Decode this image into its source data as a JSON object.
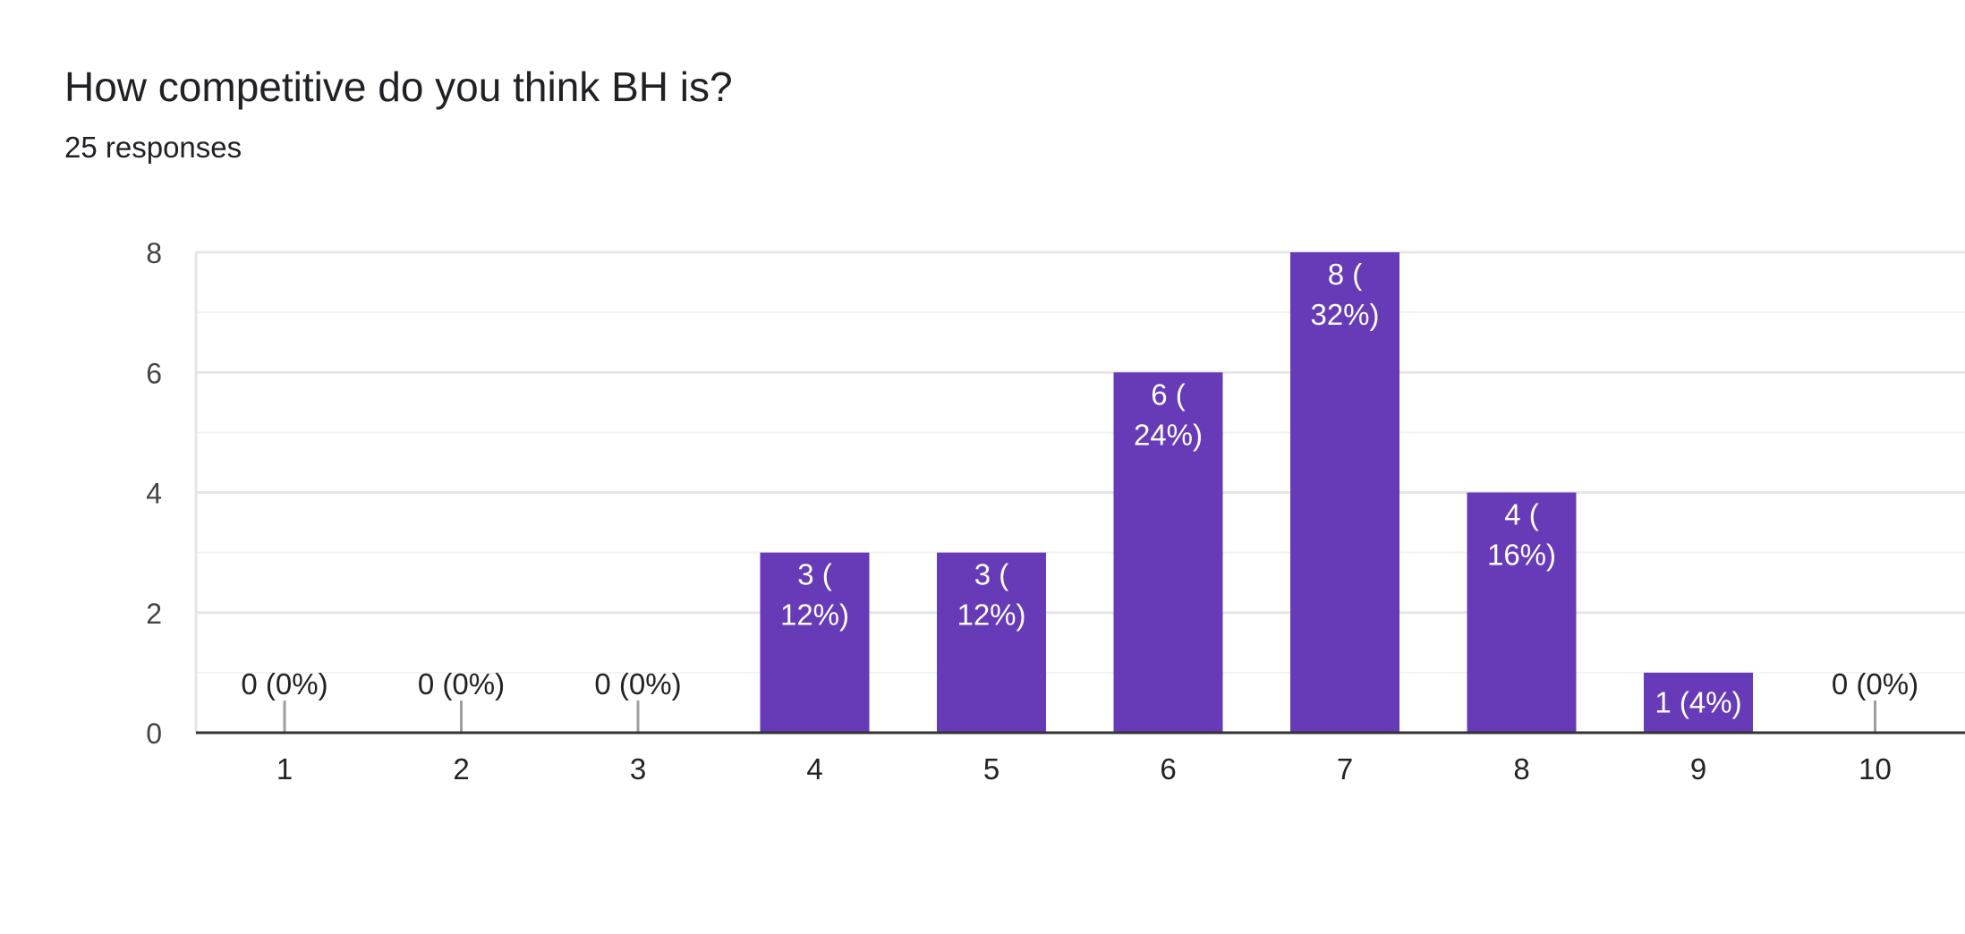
{
  "question": {
    "title": "How competitive do you think BH is?",
    "responses": "25 responses"
  },
  "colors": {
    "bar": "#673ab7",
    "grid_major": "#e6e6e6",
    "grid_minor": "#f3f3f3",
    "axis": "#333333",
    "zero_stub": "#9e9e9e",
    "tick_text": "#444444",
    "label_inside": "#ffffff",
    "label_outside": "#222222"
  },
  "chart_data": {
    "type": "bar",
    "title": "How competitive do you think BH is?",
    "subtitle": "25 responses",
    "categories": [
      "1",
      "2",
      "3",
      "4",
      "5",
      "6",
      "7",
      "8",
      "9",
      "10"
    ],
    "values": [
      0,
      0,
      0,
      3,
      3,
      6,
      8,
      4,
      1,
      0
    ],
    "data_labels": [
      [
        "0 (0%)"
      ],
      [
        "0 (0%)"
      ],
      [
        "0 (0%)"
      ],
      [
        "3 (",
        "12%)"
      ],
      [
        "3 (",
        "12%)"
      ],
      [
        "6 (",
        "24%)"
      ],
      [
        "8 (",
        "32%)"
      ],
      [
        "4 (",
        "16%)"
      ],
      [
        "1 (4%)"
      ],
      [
        "0 (0%)"
      ]
    ],
    "xlabel": "",
    "ylabel": "",
    "ylim": [
      0,
      8
    ],
    "yticks": [
      0,
      2,
      4,
      6,
      8
    ],
    "minor_step": 1,
    "grid": true,
    "legend": "none"
  }
}
